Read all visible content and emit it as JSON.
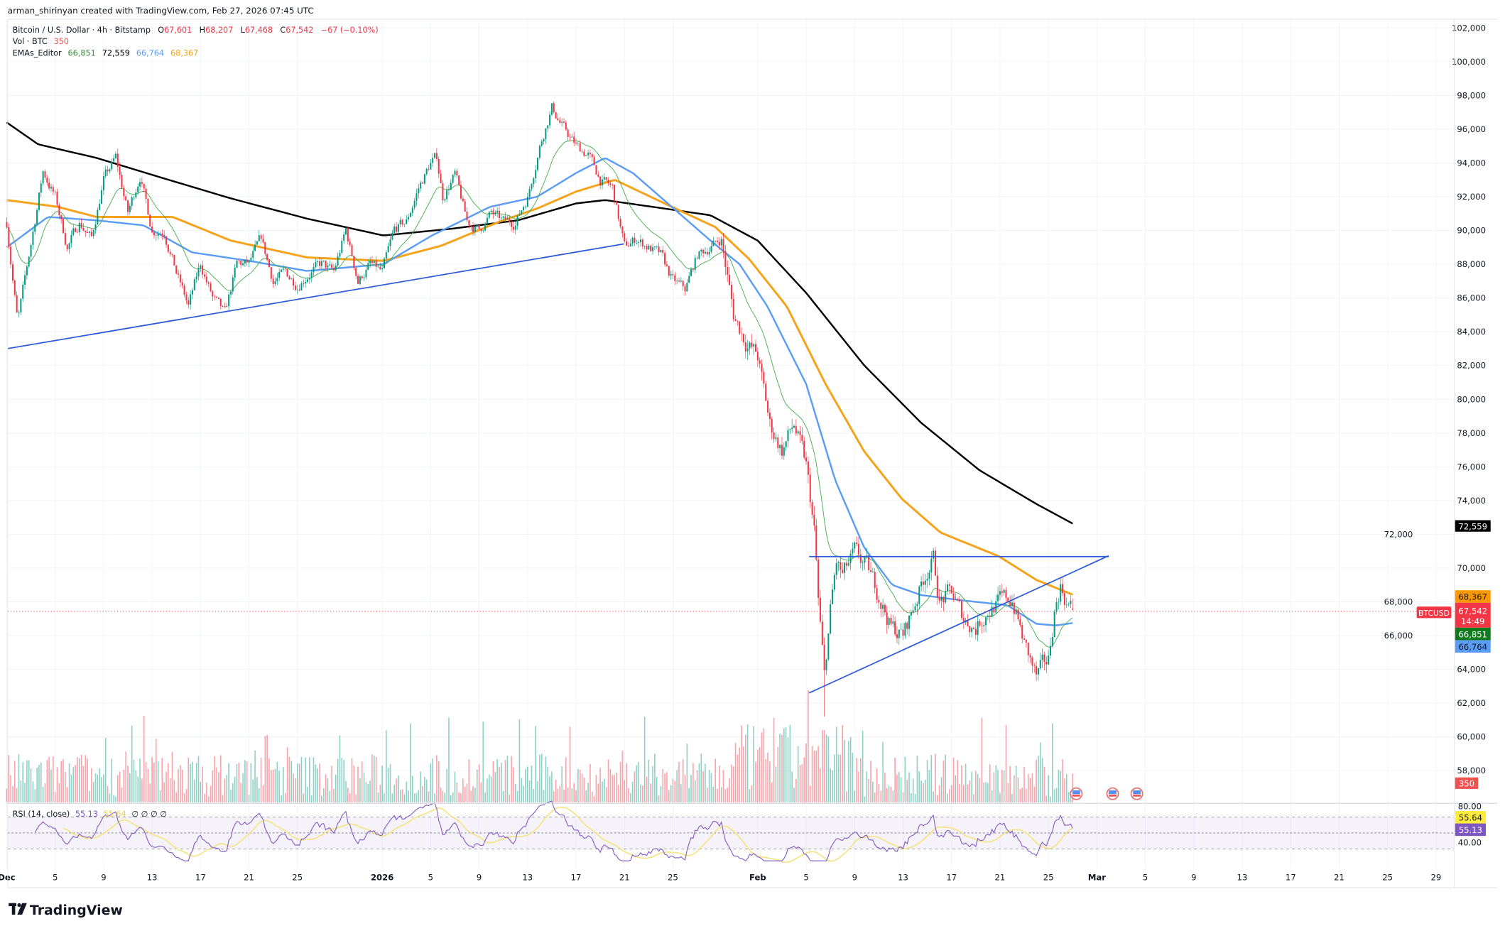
{
  "header": {
    "credit": "arman_shirinyan created with TradingView.com, Feb 27, 2026 07:45 UTC",
    "symbol": "Bitcoin / U.S. Dollar · 4h · Bitstamp",
    "o_label": "O",
    "o_value": "67,601",
    "h_label": "H",
    "h_value": "68,207",
    "l_label": "L",
    "l_value": "67,468",
    "c_label": "C",
    "c_value": "67,542",
    "change": "−67 (−0.10%)",
    "vol_label": "Vol · BTC",
    "vol_value": "350",
    "ema_label": "EMAs_Editor",
    "ema_values": [
      "66,851",
      "72,559",
      "66,764",
      "68,367"
    ]
  },
  "rsi_legend": {
    "label": "RSI (14, close)",
    "rsi": "55.13",
    "ma": "55.64",
    "extra": "∅ ∅ ∅ ∅"
  },
  "axis_tags": {
    "ema200": "72,559",
    "ema100": "68,367",
    "price": "67,542",
    "countdown": "14:49",
    "ema20": "66,851",
    "ema50": "66,764",
    "volume": "350",
    "symbol": "BTCUSD",
    "rsi_ma": "55.64",
    "rsi": "55.13",
    "rsi_top": "80.00",
    "rsi_bottom": "40.00"
  },
  "logo": {
    "text": "TradingView"
  },
  "colors": {
    "up": "#089981",
    "down": "#f23645",
    "ema20": "#388e3c",
    "ema200": "#000000",
    "ema50": "#5b9cf6",
    "ema100": "#f7a21b",
    "rsi": "#7e57c2",
    "rsi_ma": "#f5e48a",
    "trendline": "#2e5bd9"
  },
  "chart_data": {
    "type": "candlestick",
    "title": "Bitcoin / U.S. Dollar · 4h · Bitstamp",
    "x_unit": "days since Dec 1, 2025",
    "ylim": [
      56000,
      103000
    ],
    "price_ticks": [
      "58,000",
      "60,000",
      "62,000",
      "64,000",
      "66,000",
      "68,000",
      "70,000",
      "72,000",
      "74,000",
      "76,000",
      "78,000",
      "80,000",
      "82,000",
      "84,000",
      "86,000",
      "88,000",
      "90,000",
      "92,000",
      "94,000",
      "96,000",
      "98,000",
      "100,000",
      "102,000"
    ],
    "date_ticks": [
      {
        "day": 0,
        "label": "Dec"
      },
      {
        "day": 4,
        "label": "5"
      },
      {
        "day": 8,
        "label": "9"
      },
      {
        "day": 12,
        "label": "13"
      },
      {
        "day": 16,
        "label": "17"
      },
      {
        "day": 20,
        "label": "21"
      },
      {
        "day": 24,
        "label": "25"
      },
      {
        "day": 31,
        "label": "2026"
      },
      {
        "day": 35,
        "label": "5"
      },
      {
        "day": 39,
        "label": "9"
      },
      {
        "day": 43,
        "label": "13"
      },
      {
        "day": 47,
        "label": "17"
      },
      {
        "day": 51,
        "label": "21"
      },
      {
        "day": 55,
        "label": "25"
      },
      {
        "day": 62,
        "label": "Feb"
      },
      {
        "day": 66,
        "label": "5"
      },
      {
        "day": 70,
        "label": "9"
      },
      {
        "day": 74,
        "label": "13"
      },
      {
        "day": 78,
        "label": "17"
      },
      {
        "day": 82,
        "label": "21"
      },
      {
        "day": 86,
        "label": "25"
      },
      {
        "day": 90,
        "label": "Mar"
      },
      {
        "day": 94,
        "label": "5"
      },
      {
        "day": 98,
        "label": "9"
      },
      {
        "day": 102,
        "label": "13"
      },
      {
        "day": 106,
        "label": "17"
      },
      {
        "day": 110,
        "label": "21"
      },
      {
        "day": 114,
        "label": "25"
      },
      {
        "day": 118,
        "label": "29"
      }
    ],
    "price_path": [
      [
        0,
        90500
      ],
      [
        0.9,
        84500
      ],
      [
        3,
        93500
      ],
      [
        4,
        92000
      ],
      [
        5,
        89000
      ],
      [
        6,
        90500
      ],
      [
        7,
        89500
      ],
      [
        8,
        93000
      ],
      [
        9,
        94300
      ],
      [
        10,
        91000
      ],
      [
        11,
        93300
      ],
      [
        12,
        90000
      ],
      [
        13,
        90000
      ],
      [
        14,
        87500
      ],
      [
        15,
        85500
      ],
      [
        16,
        88000
      ],
      [
        17,
        86000
      ],
      [
        18,
        85000
      ],
      [
        19,
        88000
      ],
      [
        20,
        88000
      ],
      [
        21,
        89500
      ],
      [
        22,
        87000
      ],
      [
        23,
        87500
      ],
      [
        24,
        86800
      ],
      [
        25,
        87500
      ],
      [
        26,
        88000
      ],
      [
        27,
        87500
      ],
      [
        28,
        90000
      ],
      [
        29,
        87000
      ],
      [
        30,
        88000
      ],
      [
        31,
        87500
      ],
      [
        32,
        90000
      ],
      [
        33,
        90500
      ],
      [
        34,
        92500
      ],
      [
        35,
        94000
      ],
      [
        35.5,
        94300
      ],
      [
        36,
        92000
      ],
      [
        37,
        93300
      ],
      [
        38,
        90500
      ],
      [
        39,
        90000
      ],
      [
        40,
        91000
      ],
      [
        41,
        90500
      ],
      [
        42,
        90500
      ],
      [
        43,
        92000
      ],
      [
        44,
        95000
      ],
      [
        45,
        97300
      ],
      [
        46,
        96000
      ],
      [
        47,
        95000
      ],
      [
        48,
        94500
      ],
      [
        49,
        93000
      ],
      [
        50,
        92500
      ],
      [
        51,
        89000
      ],
      [
        52,
        89500
      ],
      [
        53,
        89000
      ],
      [
        54,
        88500
      ],
      [
        55,
        87000
      ],
      [
        56,
        86500
      ],
      [
        57,
        88500
      ],
      [
        58,
        89000
      ],
      [
        59,
        89500
      ],
      [
        60,
        85000
      ],
      [
        61,
        83500
      ],
      [
        62,
        82500
      ],
      [
        63,
        78500
      ],
      [
        64,
        77000
      ],
      [
        65,
        78500
      ],
      [
        66,
        76000
      ],
      [
        66.7,
        72000
      ],
      [
        67,
        68000
      ],
      [
        67.5,
        63500
      ],
      [
        68,
        67500
      ],
      [
        68.5,
        70300
      ],
      [
        69,
        69500
      ],
      [
        70,
        70800
      ],
      [
        71,
        70000
      ],
      [
        72,
        68500
      ],
      [
        73,
        66500
      ],
      [
        74,
        66000
      ],
      [
        75,
        68000
      ],
      [
        76,
        70000
      ],
      [
        76.5,
        70500
      ],
      [
        77,
        68000
      ],
      [
        78,
        68500
      ],
      [
        79,
        67000
      ],
      [
        80,
        66500
      ],
      [
        81,
        67500
      ],
      [
        82,
        68000
      ],
      [
        83,
        68200
      ],
      [
        84,
        65500
      ],
      [
        85,
        63500
      ],
      [
        86,
        64500
      ],
      [
        86.5,
        67500
      ],
      [
        87,
        69000
      ],
      [
        87.5,
        68000
      ],
      [
        88,
        67542
      ]
    ],
    "last_candle": {
      "open": 67601,
      "high": 68207,
      "low": 67468,
      "close": 67542,
      "volume": 350
    },
    "ema200": [
      [
        0,
        96400
      ],
      [
        2.6,
        95100
      ],
      [
        7.4,
        94300
      ],
      [
        12.9,
        93100
      ],
      [
        18.5,
        91900
      ],
      [
        24.8,
        90700
      ],
      [
        31.1,
        89700
      ],
      [
        36.7,
        90100
      ],
      [
        42.2,
        90600
      ],
      [
        47,
        91600
      ],
      [
        49.4,
        91800
      ],
      [
        53.3,
        91400
      ],
      [
        58.1,
        90900
      ],
      [
        62,
        89400
      ],
      [
        66,
        86300
      ],
      [
        70.8,
        82000
      ],
      [
        75.5,
        78600
      ],
      [
        80.3,
        75800
      ],
      [
        85,
        73800
      ],
      [
        88.2,
        72559
      ]
    ],
    "ema100": [
      [
        0,
        91800
      ],
      [
        4.2,
        91400
      ],
      [
        7.4,
        90800
      ],
      [
        13.7,
        90800
      ],
      [
        18.5,
        89400
      ],
      [
        24.8,
        88400
      ],
      [
        31.1,
        88200
      ],
      [
        35.9,
        89100
      ],
      [
        40.6,
        90500
      ],
      [
        43.8,
        91300
      ],
      [
        47,
        92300
      ],
      [
        50.2,
        93000
      ],
      [
        54.9,
        91400
      ],
      [
        58.5,
        90200
      ],
      [
        61.3,
        88300
      ],
      [
        64.4,
        85500
      ],
      [
        67.6,
        80900
      ],
      [
        70.8,
        76900
      ],
      [
        73.9,
        74100
      ],
      [
        77.1,
        72100
      ],
      [
        81.9,
        70700
      ],
      [
        85,
        69300
      ],
      [
        88.2,
        68367
      ]
    ],
    "ema50": [
      [
        0,
        89000
      ],
      [
        3.4,
        90800
      ],
      [
        7.4,
        90600
      ],
      [
        11.3,
        90300
      ],
      [
        15.3,
        88700
      ],
      [
        20,
        88200
      ],
      [
        24.8,
        87600
      ],
      [
        31.1,
        88000
      ],
      [
        35.1,
        89700
      ],
      [
        39.9,
        91400
      ],
      [
        43.8,
        92000
      ],
      [
        47,
        93400
      ],
      [
        49.4,
        94300
      ],
      [
        51.7,
        93400
      ],
      [
        54.9,
        91400
      ],
      [
        58.1,
        89400
      ],
      [
        60.5,
        88000
      ],
      [
        62.8,
        85500
      ],
      [
        66,
        80900
      ],
      [
        68.4,
        75200
      ],
      [
        70.8,
        71200
      ],
      [
        73.1,
        69000
      ],
      [
        75.5,
        68400
      ],
      [
        78.7,
        68100
      ],
      [
        82.6,
        67800
      ],
      [
        85,
        66700
      ],
      [
        86.6,
        66600
      ],
      [
        88.2,
        66764
      ]
    ],
    "ema20_period_candles": 20,
    "rsi_period": 14,
    "rsi_ma_period": 14,
    "rsi_levels": [
      70,
      50,
      30
    ],
    "trendlines": [
      {
        "from": [
          0.08,
          83000
        ],
        "to": [
          50.95,
          89200
        ]
      },
      {
        "from": [
          66.24,
          70680
        ],
        "to": [
          90.97,
          70680
        ]
      },
      {
        "from": [
          66.24,
          62600
        ],
        "to": [
          90.97,
          70730
        ]
      }
    ],
    "events": [
      {
        "day": 88.3,
        "label": "US"
      },
      {
        "day": 91.3,
        "label": "US"
      },
      {
        "day": 93.3,
        "label": "US"
      }
    ]
  }
}
